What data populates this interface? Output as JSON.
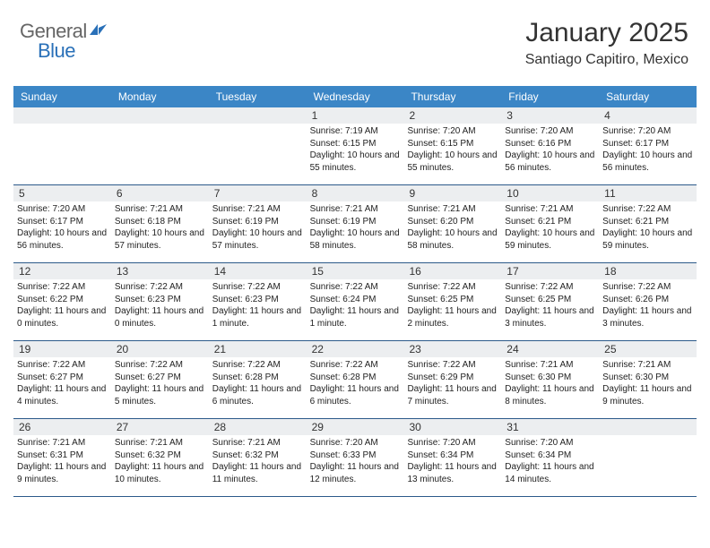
{
  "logo": {
    "general": "General",
    "blue": "Blue"
  },
  "header": {
    "month": "January 2025",
    "location": "Santiago Capitiro, Mexico"
  },
  "colors": {
    "header_bar": "#3b86c6",
    "day_bar": "#eceef0",
    "week_divider": "#2c5a8a",
    "logo_blue": "#2970b8",
    "text": "#333333"
  },
  "day_names": [
    "Sunday",
    "Monday",
    "Tuesday",
    "Wednesday",
    "Thursday",
    "Friday",
    "Saturday"
  ],
  "weeks": [
    [
      null,
      null,
      null,
      {
        "n": "1",
        "sr": "7:19 AM",
        "ss": "6:15 PM",
        "dl": "10 hours and 55 minutes."
      },
      {
        "n": "2",
        "sr": "7:20 AM",
        "ss": "6:15 PM",
        "dl": "10 hours and 55 minutes."
      },
      {
        "n": "3",
        "sr": "7:20 AM",
        "ss": "6:16 PM",
        "dl": "10 hours and 56 minutes."
      },
      {
        "n": "4",
        "sr": "7:20 AM",
        "ss": "6:17 PM",
        "dl": "10 hours and 56 minutes."
      }
    ],
    [
      {
        "n": "5",
        "sr": "7:20 AM",
        "ss": "6:17 PM",
        "dl": "10 hours and 56 minutes."
      },
      {
        "n": "6",
        "sr": "7:21 AM",
        "ss": "6:18 PM",
        "dl": "10 hours and 57 minutes."
      },
      {
        "n": "7",
        "sr": "7:21 AM",
        "ss": "6:19 PM",
        "dl": "10 hours and 57 minutes."
      },
      {
        "n": "8",
        "sr": "7:21 AM",
        "ss": "6:19 PM",
        "dl": "10 hours and 58 minutes."
      },
      {
        "n": "9",
        "sr": "7:21 AM",
        "ss": "6:20 PM",
        "dl": "10 hours and 58 minutes."
      },
      {
        "n": "10",
        "sr": "7:21 AM",
        "ss": "6:21 PM",
        "dl": "10 hours and 59 minutes."
      },
      {
        "n": "11",
        "sr": "7:22 AM",
        "ss": "6:21 PM",
        "dl": "10 hours and 59 minutes."
      }
    ],
    [
      {
        "n": "12",
        "sr": "7:22 AM",
        "ss": "6:22 PM",
        "dl": "11 hours and 0 minutes."
      },
      {
        "n": "13",
        "sr": "7:22 AM",
        "ss": "6:23 PM",
        "dl": "11 hours and 0 minutes."
      },
      {
        "n": "14",
        "sr": "7:22 AM",
        "ss": "6:23 PM",
        "dl": "11 hours and 1 minute."
      },
      {
        "n": "15",
        "sr": "7:22 AM",
        "ss": "6:24 PM",
        "dl": "11 hours and 1 minute."
      },
      {
        "n": "16",
        "sr": "7:22 AM",
        "ss": "6:25 PM",
        "dl": "11 hours and 2 minutes."
      },
      {
        "n": "17",
        "sr": "7:22 AM",
        "ss": "6:25 PM",
        "dl": "11 hours and 3 minutes."
      },
      {
        "n": "18",
        "sr": "7:22 AM",
        "ss": "6:26 PM",
        "dl": "11 hours and 3 minutes."
      }
    ],
    [
      {
        "n": "19",
        "sr": "7:22 AM",
        "ss": "6:27 PM",
        "dl": "11 hours and 4 minutes."
      },
      {
        "n": "20",
        "sr": "7:22 AM",
        "ss": "6:27 PM",
        "dl": "11 hours and 5 minutes."
      },
      {
        "n": "21",
        "sr": "7:22 AM",
        "ss": "6:28 PM",
        "dl": "11 hours and 6 minutes."
      },
      {
        "n": "22",
        "sr": "7:22 AM",
        "ss": "6:28 PM",
        "dl": "11 hours and 6 minutes."
      },
      {
        "n": "23",
        "sr": "7:22 AM",
        "ss": "6:29 PM",
        "dl": "11 hours and 7 minutes."
      },
      {
        "n": "24",
        "sr": "7:21 AM",
        "ss": "6:30 PM",
        "dl": "11 hours and 8 minutes."
      },
      {
        "n": "25",
        "sr": "7:21 AM",
        "ss": "6:30 PM",
        "dl": "11 hours and 9 minutes."
      }
    ],
    [
      {
        "n": "26",
        "sr": "7:21 AM",
        "ss": "6:31 PM",
        "dl": "11 hours and 9 minutes."
      },
      {
        "n": "27",
        "sr": "7:21 AM",
        "ss": "6:32 PM",
        "dl": "11 hours and 10 minutes."
      },
      {
        "n": "28",
        "sr": "7:21 AM",
        "ss": "6:32 PM",
        "dl": "11 hours and 11 minutes."
      },
      {
        "n": "29",
        "sr": "7:20 AM",
        "ss": "6:33 PM",
        "dl": "11 hours and 12 minutes."
      },
      {
        "n": "30",
        "sr": "7:20 AM",
        "ss": "6:34 PM",
        "dl": "11 hours and 13 minutes."
      },
      {
        "n": "31",
        "sr": "7:20 AM",
        "ss": "6:34 PM",
        "dl": "11 hours and 14 minutes."
      },
      null
    ]
  ],
  "labels": {
    "sunrise": "Sunrise: ",
    "sunset": "Sunset: ",
    "daylight": "Daylight: "
  }
}
